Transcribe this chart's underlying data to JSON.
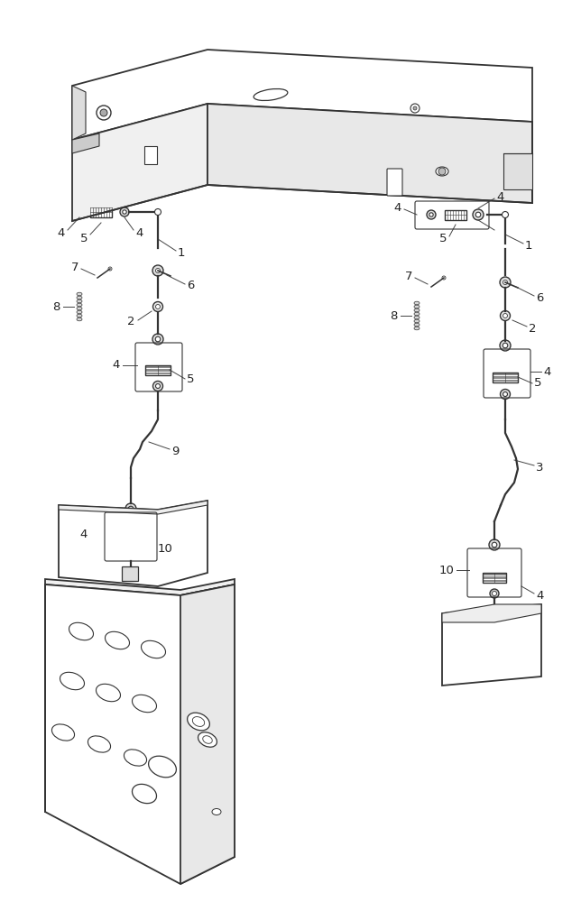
{
  "bg_color": "#ffffff",
  "line_color": "#333333",
  "lw_main": 1.3,
  "lw_thin": 0.7,
  "label_fs": 9.5,
  "fig_width": 6.44,
  "fig_height": 10.0,
  "dpi": 100
}
